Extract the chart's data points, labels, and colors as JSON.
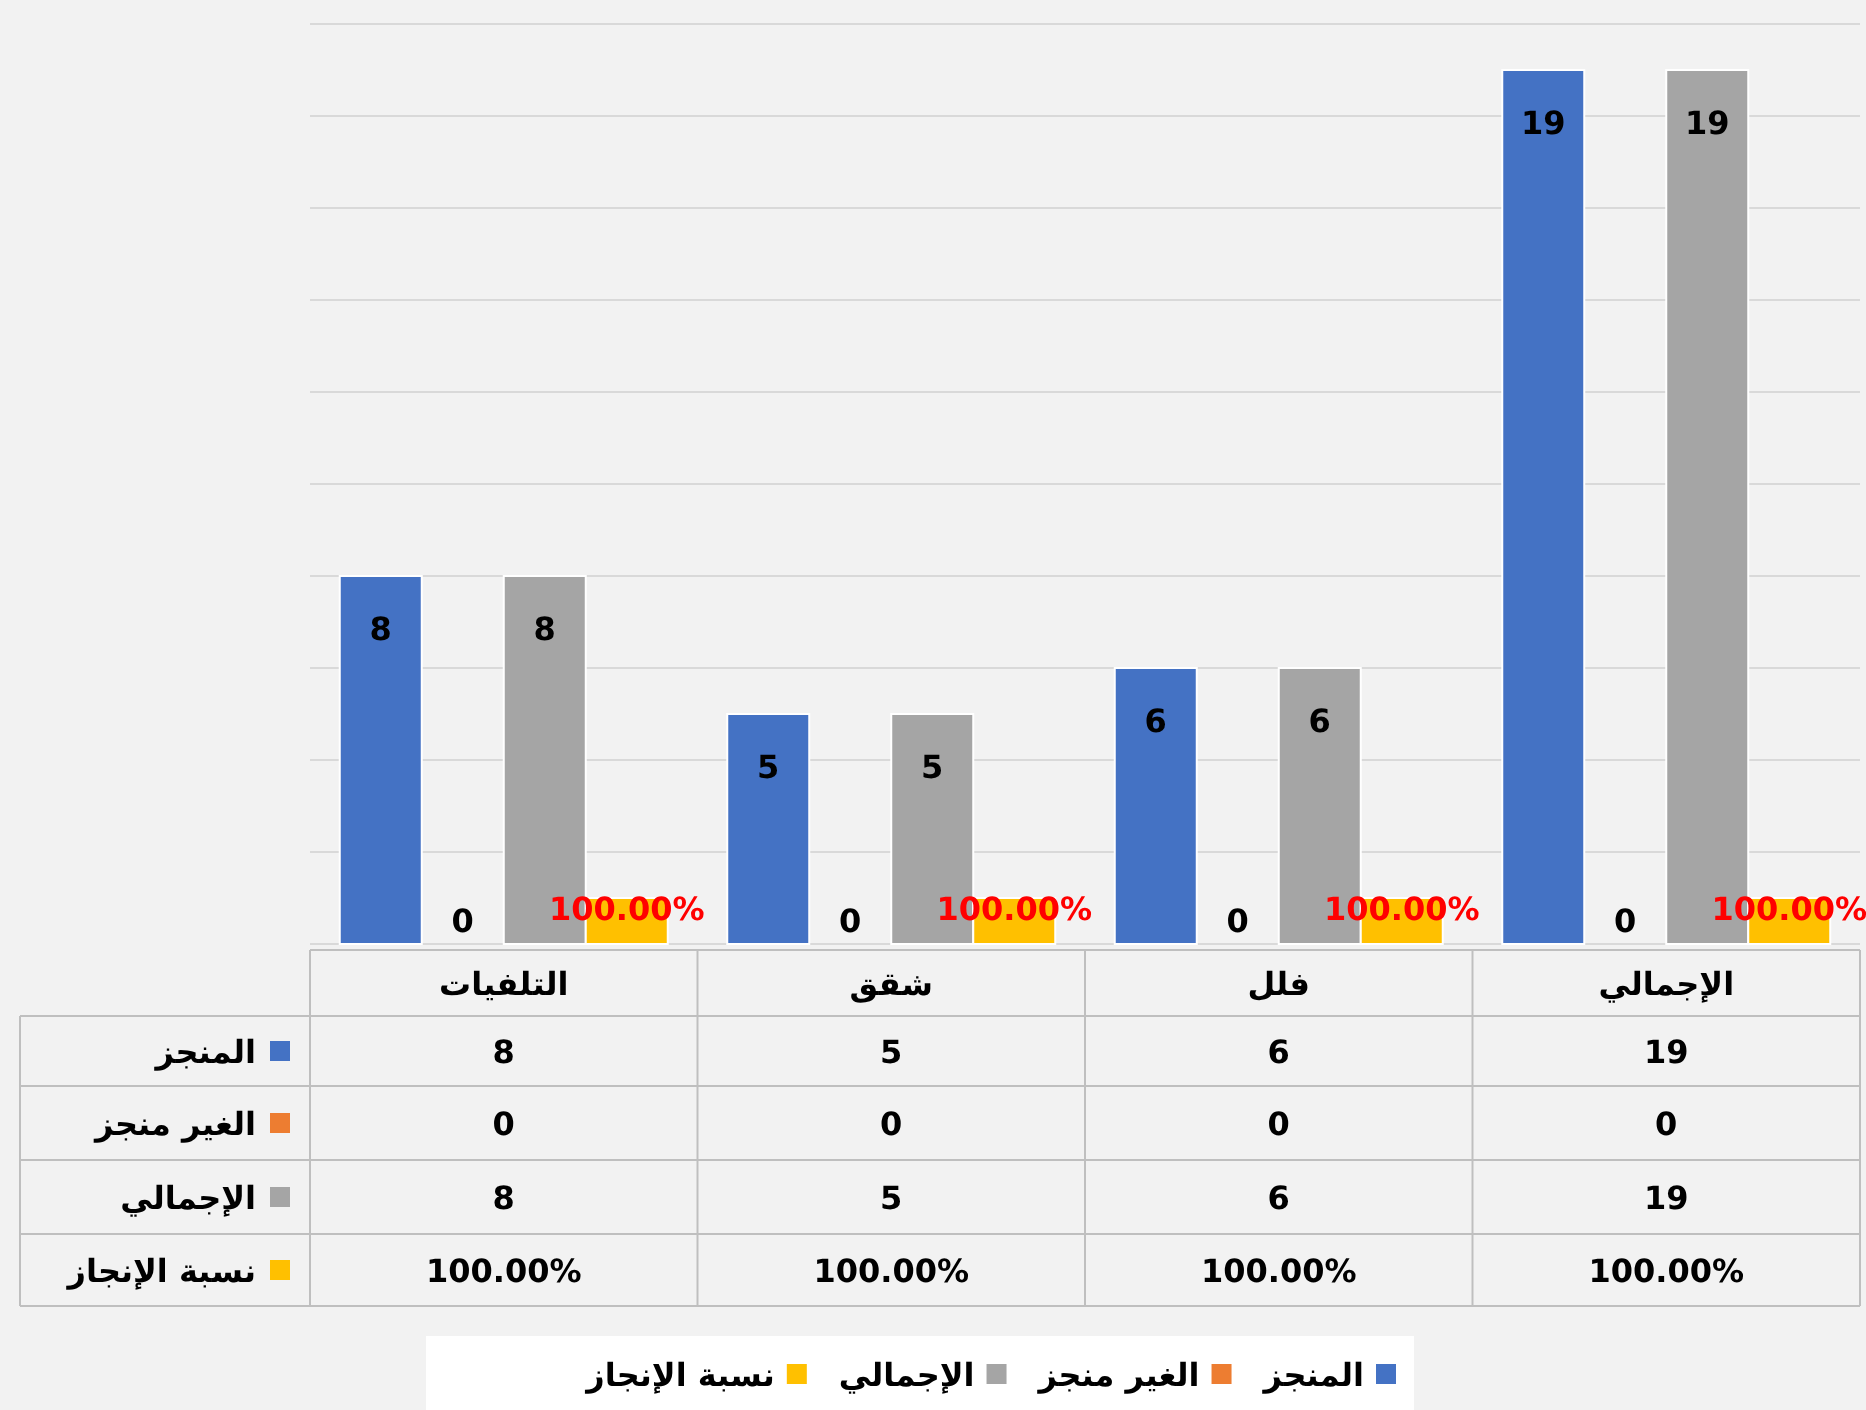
{
  "chart_data": {
    "type": "bar",
    "categories": [
      "التلفيات",
      "شقق",
      "فلل",
      "الإجمالي"
    ],
    "series": [
      {
        "name": "المنجز",
        "color": "#4472c4",
        "values": [
          8,
          5,
          6,
          19
        ],
        "value_labels": [
          "8",
          "5",
          "6",
          "19"
        ]
      },
      {
        "name": "الغير منجز",
        "color": "#ed7d31",
        "values": [
          0,
          0,
          0,
          0
        ],
        "value_labels": [
          "0",
          "0",
          "0",
          "0"
        ]
      },
      {
        "name": "الإجمالي",
        "color": "#a5a5a5",
        "values": [
          8,
          5,
          6,
          19
        ],
        "value_labels": [
          "8",
          "5",
          "6",
          "19"
        ]
      },
      {
        "name": "نسبة الإنجاز",
        "color": "#ffc000",
        "values": [
          1,
          1,
          1,
          1
        ],
        "value_labels": [
          "100.00%",
          "100.00%",
          "100.00%",
          "100.00%"
        ]
      }
    ],
    "ylim": [
      0,
      20
    ],
    "yticks": [
      {
        "value": 0,
        "label": null
      },
      {
        "value": 2,
        "label": null
      },
      {
        "value": 4,
        "label": null
      },
      {
        "value": 6,
        "label": null
      },
      {
        "value": 8,
        "label": null
      },
      {
        "value": 10,
        "label": null
      },
      {
        "value": 12,
        "label": null
      },
      {
        "value": 14,
        "label": null
      },
      {
        "value": 16,
        "label": null
      },
      {
        "value": 18,
        "label": null
      },
      {
        "value": 20,
        "label": null
      }
    ],
    "grid": "y",
    "data_labels": true,
    "legend": "bottom"
  }
}
